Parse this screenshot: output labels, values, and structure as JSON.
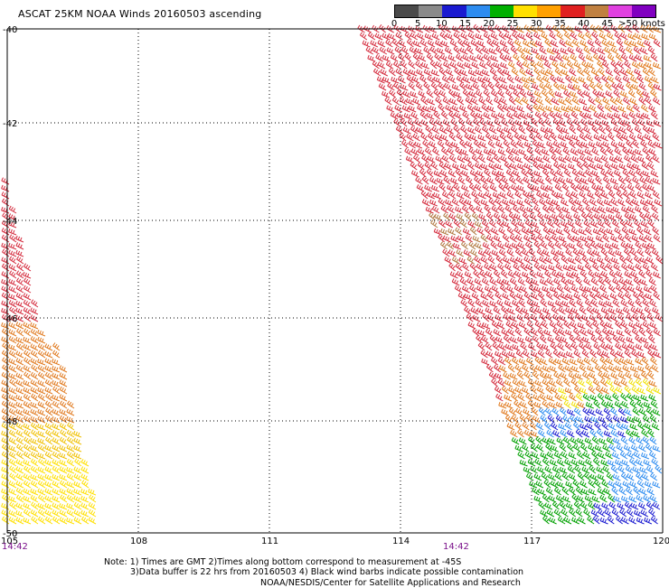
{
  "title": "ASCAT 25KM NOAA Winds 20160503 ascending",
  "legend": {
    "labels": [
      "0",
      "5",
      "10",
      "15",
      "20",
      "25",
      "30",
      "35",
      "40",
      "45",
      ">50 knots"
    ],
    "colors": [
      "#4a4a4a",
      "#8a8a8a",
      "#1a1ad0",
      "#2d8cf0",
      "#00b000",
      "#ffe000",
      "#ffa000",
      "#e02020",
      "#c08040",
      "#e040e0",
      "#8000c0"
    ]
  },
  "axes": {
    "lat_labels": [
      "-40",
      "-42",
      "-44",
      "-46",
      "-48",
      "-50"
    ],
    "lon_labels": [
      "105",
      "108",
      "111",
      "114",
      "117",
      "120"
    ]
  },
  "times": [
    "14:42",
    "14:42"
  ],
  "notes": {
    "line1": "Note: 1) Times are GMT 2)Times along bottom correspond to measurement at -45S",
    "line2": "3)Data buffer is 22 hrs from 20160503 4) Black wind barbs indicate possible contamination",
    "credit": "NOAA/NESDIS/Center for Satellite Applications and Research"
  }
}
